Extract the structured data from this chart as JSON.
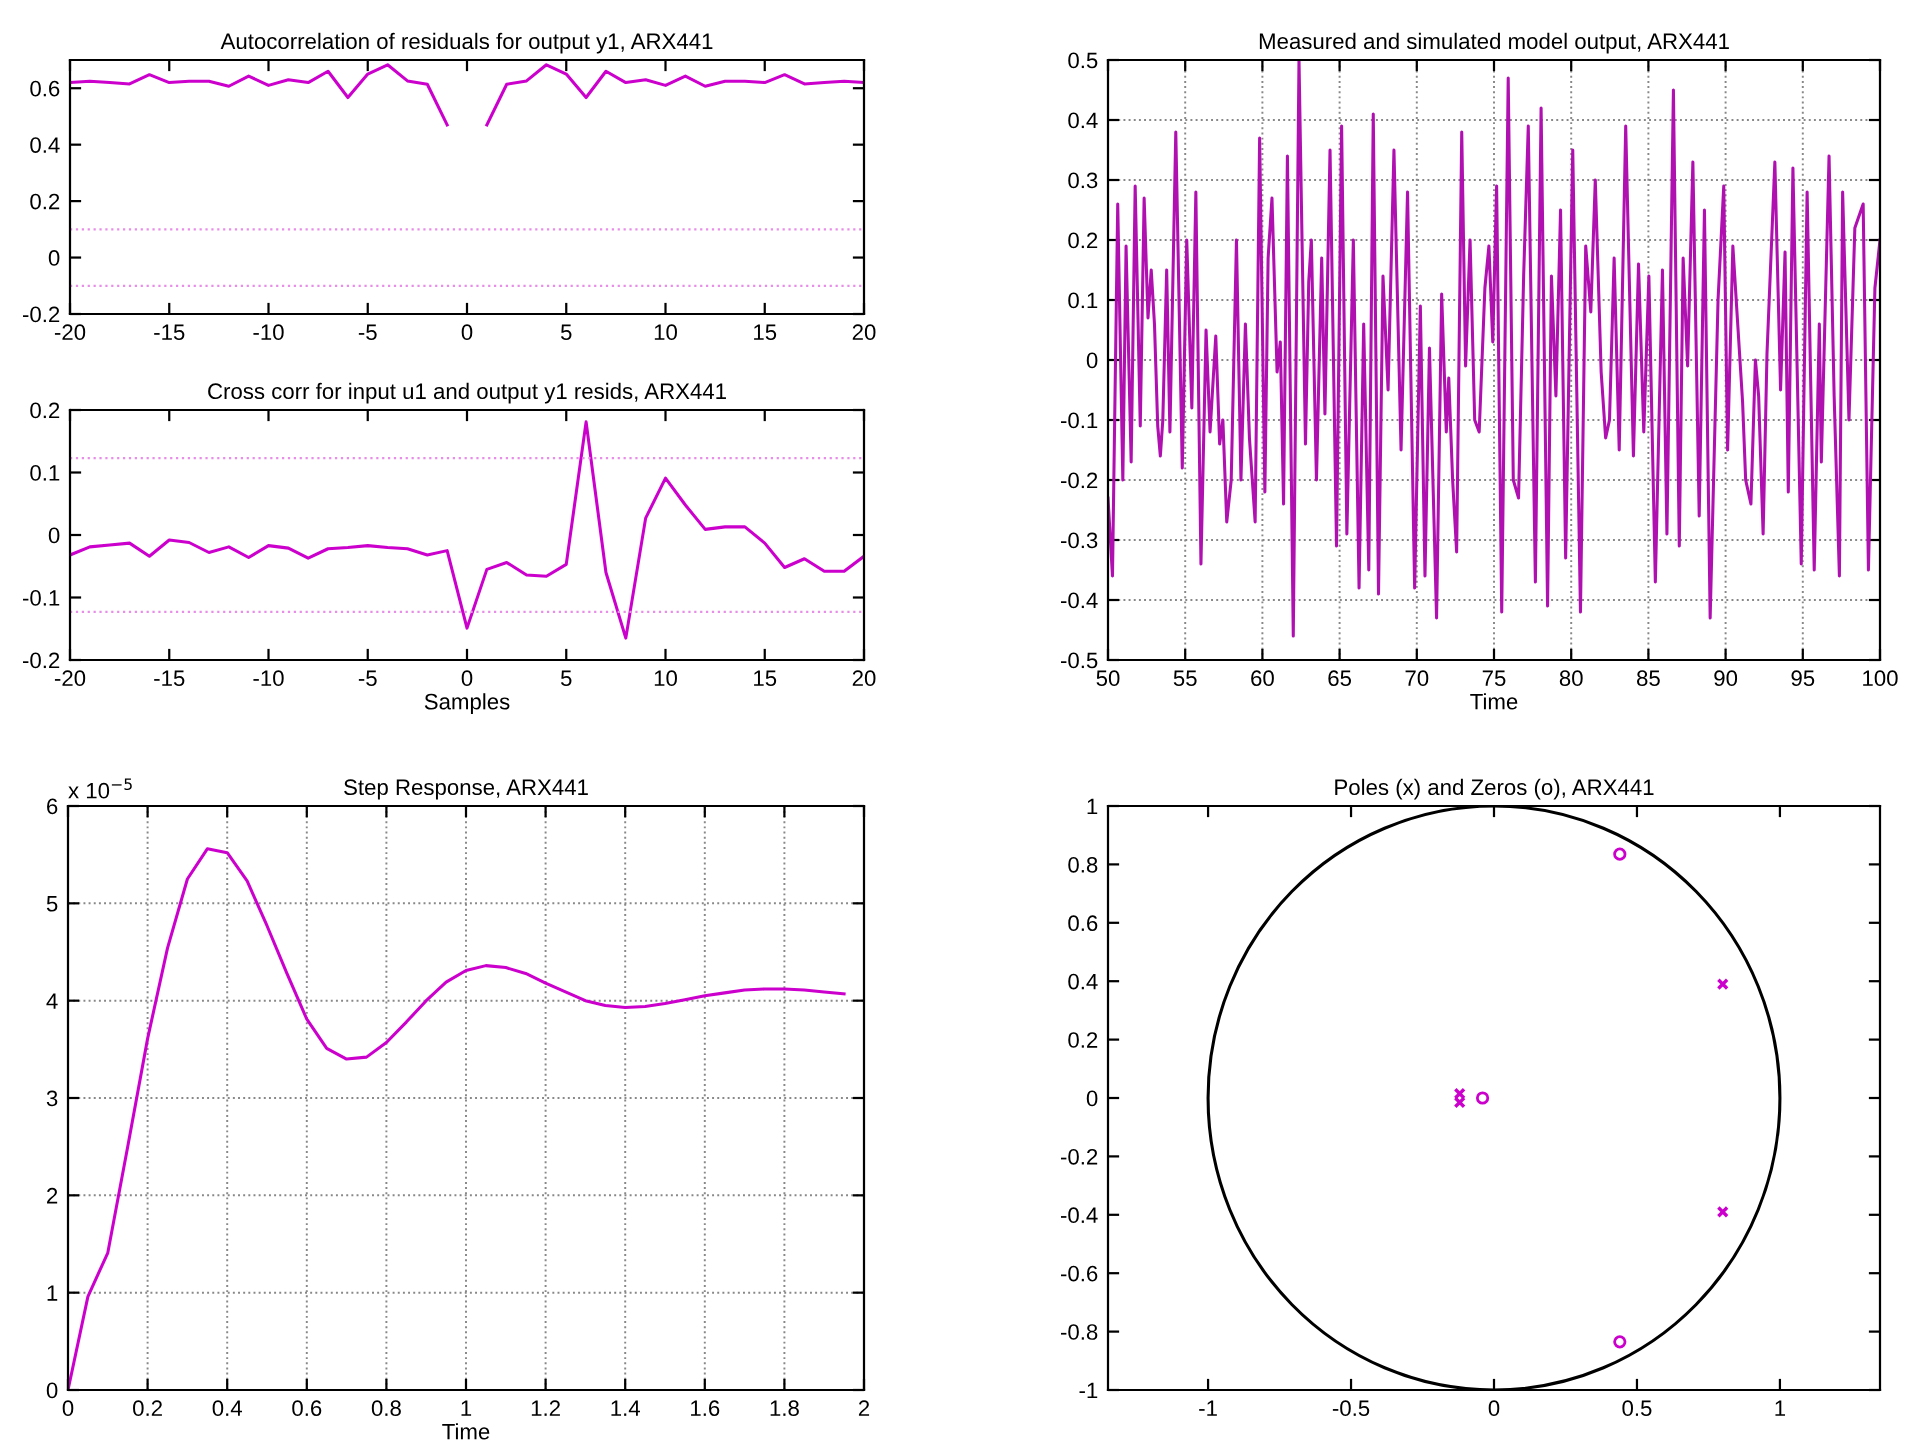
{
  "chart_data": [
    {
      "type": "line",
      "title": "Autocorrelation of residuals for output y1, ARX441",
      "xlim": [
        -20,
        20
      ],
      "xticks": [
        -20,
        -15,
        -10,
        -5,
        0,
        5,
        10,
        15,
        20
      ],
      "ylim": [
        -0.2,
        0.7
      ],
      "yticks": [
        -0.2,
        0,
        0.2,
        0.4,
        0.6
      ],
      "x": [
        -20,
        -19,
        -18,
        -17,
        -16,
        -15,
        -14,
        -13,
        -12,
        -11,
        -10,
        -9,
        -8,
        -7,
        -6,
        -5,
        -4,
        -3,
        -2,
        -1,
        0,
        1,
        2,
        3,
        4,
        5,
        6,
        7,
        8,
        9,
        10,
        11,
        12,
        13,
        14,
        15,
        16,
        17,
        18,
        19,
        20
      ],
      "series": [
        {
          "color": "#cc00cc",
          "values": [
            0.62,
            0.625,
            0.62,
            0.615,
            0.648,
            0.62,
            0.625,
            0.625,
            0.607,
            0.643,
            0.61,
            0.63,
            0.62,
            0.66,
            0.567,
            0.65,
            0.683,
            0.626,
            0.614,
            0.47,
            null,
            0.47,
            0.614,
            0.626,
            0.683,
            0.65,
            0.567,
            0.66,
            0.62,
            0.63,
            0.61,
            0.643,
            0.607,
            0.625,
            0.625,
            0.62,
            0.648,
            0.615,
            0.62,
            0.625,
            0.62
          ]
        }
      ],
      "ref_lines": [
        {
          "axis": "y",
          "value": 0.1,
          "color": "#e88ee8",
          "line_style": "dotted"
        },
        {
          "axis": "y",
          "value": -0.1,
          "color": "#e88ee8",
          "line_style": "dotted"
        }
      ],
      "grid": false
    },
    {
      "type": "line",
      "title": "Measured and simulated model output, ARX441",
      "xlabel": "Time",
      "xlim": [
        50,
        100
      ],
      "xticks": [
        50,
        55,
        60,
        65,
        70,
        75,
        80,
        85,
        90,
        95,
        100
      ],
      "ylim": [
        -0.5,
        0.5
      ],
      "yticks": [
        -0.5,
        -0.4,
        -0.3,
        -0.2,
        -0.1,
        0,
        0.1,
        0.2,
        0.3,
        0.4,
        0.5
      ],
      "x": [
        50.0,
        50.29,
        50.63,
        50.96,
        51.17,
        51.5,
        51.76,
        52.09,
        52.34,
        52.59,
        52.8,
        53.01,
        53.22,
        53.39,
        53.55,
        53.8,
        54.01,
        54.39,
        54.81,
        55.1,
        55.43,
        55.69,
        56.02,
        56.35,
        56.61,
        56.98,
        57.23,
        57.44,
        57.69,
        57.98,
        58.32,
        58.61,
        58.9,
        59.16,
        59.53,
        59.82,
        60.16,
        60.37,
        60.62,
        60.95,
        61.16,
        61.37,
        61.62,
        62.0,
        62.37,
        62.79,
        63.0,
        63.17,
        63.5,
        63.84,
        64.05,
        64.38,
        64.8,
        65.13,
        65.47,
        65.89,
        66.26,
        66.56,
        66.89,
        67.18,
        67.52,
        67.81,
        68.14,
        68.52,
        68.98,
        69.4,
        69.86,
        70.23,
        70.53,
        70.82,
        71.28,
        71.61,
        71.91,
        72.07,
        72.32,
        72.58,
        72.91,
        73.16,
        73.45,
        73.75,
        74.04,
        74.41,
        74.67,
        74.92,
        75.17,
        75.5,
        75.92,
        76.25,
        76.59,
        76.92,
        77.22,
        77.68,
        78.05,
        78.47,
        78.72,
        79.01,
        79.31,
        79.64,
        80.1,
        80.6,
        80.94,
        81.27,
        81.56,
        81.94,
        82.23,
        82.48,
        82.78,
        83.11,
        83.53,
        84.03,
        84.36,
        84.7,
        85.03,
        85.45,
        85.91,
        86.2,
        86.62,
        87.0,
        87.25,
        87.54,
        87.88,
        88.29,
        88.63,
        89.0,
        89.51,
        89.88,
        90.13,
        90.47,
        90.76,
        91.1,
        91.3,
        91.64,
        91.93,
        92.14,
        92.43,
        92.68,
        93.19,
        93.56,
        93.85,
        94.06,
        94.36,
        94.9,
        95.28,
        95.74,
        96.07,
        96.2,
        96.7,
        97.03,
        97.37,
        97.58,
        97.99,
        98.37,
        98.91,
        99.25,
        99.67,
        100.0
      ],
      "series": [
        {
          "color": "#b010b0",
          "values": [
            -0.23,
            -0.36,
            0.26,
            -0.2,
            0.19,
            -0.17,
            0.29,
            -0.11,
            0.27,
            0.07,
            0.15,
            0.06,
            -0.11,
            -0.16,
            -0.1,
            0.15,
            -0.12,
            0.38,
            -0.18,
            0.2,
            -0.08,
            0.28,
            -0.34,
            0.05,
            -0.12,
            0.04,
            -0.14,
            -0.1,
            -0.27,
            -0.2,
            0.2,
            -0.2,
            0.06,
            -0.13,
            -0.27,
            0.37,
            -0.22,
            0.17,
            0.27,
            -0.02,
            0.03,
            -0.24,
            0.34,
            -0.46,
            0.5,
            -0.14,
            0.13,
            0.2,
            -0.2,
            0.17,
            -0.09,
            0.35,
            -0.31,
            0.39,
            -0.29,
            0.2,
            -0.38,
            0.06,
            -0.35,
            0.41,
            -0.39,
            0.14,
            -0.05,
            0.35,
            -0.15,
            0.28,
            -0.38,
            0.09,
            -0.36,
            0.02,
            -0.43,
            0.11,
            -0.12,
            -0.03,
            -0.2,
            -0.32,
            0.38,
            -0.01,
            0.2,
            -0.1,
            -0.12,
            0.12,
            0.19,
            0.03,
            0.29,
            -0.42,
            0.47,
            -0.2,
            -0.23,
            0.14,
            0.39,
            -0.37,
            0.42,
            -0.41,
            0.14,
            -0.06,
            0.25,
            -0.33,
            0.35,
            -0.42,
            0.19,
            0.08,
            0.3,
            -0.02,
            -0.13,
            -0.1,
            0.17,
            -0.15,
            0.39,
            -0.16,
            0.16,
            -0.12,
            0.14,
            -0.37,
            0.15,
            -0.29,
            0.45,
            -0.31,
            0.17,
            -0.01,
            0.33,
            -0.26,
            0.25,
            -0.43,
            0.1,
            0.29,
            -0.15,
            0.19,
            0.07,
            -0.07,
            -0.2,
            -0.24,
            0,
            -0.06,
            -0.29,
            0.01,
            0.33,
            -0.05,
            0.18,
            -0.22,
            0.32,
            -0.34,
            0.28,
            -0.35,
            0.06,
            -0.17,
            0.34,
            -0.06,
            -0.36,
            0.28,
            -0.1,
            0.22,
            0.26,
            -0.35,
            0.12,
            0.2
          ]
        }
      ],
      "grid": true
    },
    {
      "type": "line",
      "title": "Cross corr for input u1 and output y1 resids, ARX441",
      "xlabel": "Samples",
      "xlim": [
        -20,
        20
      ],
      "xticks": [
        -20,
        -15,
        -10,
        -5,
        0,
        5,
        10,
        15,
        20
      ],
      "ylim": [
        -0.2,
        0.2
      ],
      "yticks": [
        -0.2,
        -0.1,
        0,
        0.1,
        0.2
      ],
      "x": [
        -20,
        -19,
        -18,
        -17,
        -16,
        -15,
        -14,
        -13,
        -12,
        -11,
        -10,
        -9,
        -8,
        -7,
        -6,
        -5,
        -4,
        -3,
        -2,
        -1,
        0,
        1,
        2,
        3,
        4,
        5,
        6,
        7,
        8,
        9,
        10,
        11,
        12,
        13,
        14,
        15,
        16,
        17,
        18,
        19,
        20
      ],
      "series": [
        {
          "color": "#cc00cc",
          "values": [
            -0.032,
            -0.019,
            -0.016,
            -0.013,
            -0.034,
            -0.008,
            -0.012,
            -0.028,
            -0.019,
            -0.036,
            -0.017,
            -0.021,
            -0.037,
            -0.022,
            -0.02,
            -0.017,
            -0.02,
            -0.022,
            -0.032,
            -0.025,
            -0.149,
            -0.055,
            -0.044,
            -0.064,
            -0.066,
            -0.047,
            0.181,
            -0.06,
            -0.165,
            0.027,
            0.091,
            0.048,
            0.009,
            0.013,
            0.013,
            -0.013,
            -0.052,
            -0.038,
            -0.058,
            -0.058,
            -0.034
          ]
        }
      ],
      "ref_lines": [
        {
          "axis": "y",
          "value": 0.123,
          "color": "#e88ee8",
          "line_style": "dotted"
        },
        {
          "axis": "y",
          "value": -0.123,
          "color": "#e88ee8",
          "line_style": "dotted"
        }
      ],
      "grid": false
    },
    {
      "type": "line",
      "title": "Step Response, ARX441",
      "xlabel": "Time",
      "annotations": [
        "x 10$^{−5}$"
      ],
      "xlim": [
        0,
        2
      ],
      "xticks": [
        0,
        0.2,
        0.4,
        0.6,
        0.8,
        1,
        1.2,
        1.4,
        1.6,
        1.8,
        2
      ],
      "ylim": [
        0,
        6
      ],
      "yticks": [
        0,
        1,
        2,
        3,
        4,
        5,
        6
      ],
      "x": [
        0,
        0.05,
        0.1,
        0.15,
        0.2,
        0.25,
        0.3,
        0.35,
        0.4,
        0.45,
        0.5,
        0.55,
        0.6,
        0.65,
        0.7,
        0.75,
        0.8,
        0.85,
        0.9,
        0.95,
        1.0,
        1.05,
        1.1,
        1.15,
        1.2,
        1.25,
        1.3,
        1.35,
        1.4,
        1.45,
        1.5,
        1.55,
        1.6,
        1.65,
        1.7,
        1.75,
        1.8,
        1.85,
        1.9,
        1.95
      ],
      "series": [
        {
          "color": "#cc00cc",
          "values": [
            0,
            0.96,
            1.41,
            2.5,
            3.61,
            4.54,
            5.25,
            5.56,
            5.52,
            5.23,
            4.77,
            4.28,
            3.81,
            3.51,
            3.4,
            3.42,
            3.57,
            3.78,
            4.0,
            4.19,
            4.31,
            4.36,
            4.34,
            4.28,
            4.18,
            4.09,
            4.0,
            3.95,
            3.93,
            3.94,
            3.97,
            4.01,
            4.05,
            4.08,
            4.11,
            4.12,
            4.12,
            4.11,
            4.09,
            4.07
          ]
        }
      ],
      "grid": true
    },
    {
      "type": "scatter",
      "title": "Poles (x) and Zeros (o), ARX441",
      "xlim": [
        -1.35,
        1.35
      ],
      "xticks": [
        -1,
        -0.5,
        0,
        0.5,
        1
      ],
      "ylim": [
        -1,
        1
      ],
      "yticks": [
        -1,
        -0.8,
        -0.6,
        -0.4,
        -0.2,
        0,
        0.2,
        0.4,
        0.6,
        0.8,
        1
      ],
      "series": [
        {
          "color": "#cc00cc",
          "marker": "cross",
          "x": [
            0.8,
            0.8,
            -0.12,
            -0.12
          ],
          "values": [
            0.39,
            -0.39,
            0.015,
            -0.015
          ]
        },
        {
          "color": "#cc00cc",
          "marker": "circle",
          "x": [
            0.44,
            0.44,
            -0.04
          ],
          "values": [
            0.835,
            -0.835,
            0
          ]
        }
      ],
      "grid": false
    }
  ]
}
